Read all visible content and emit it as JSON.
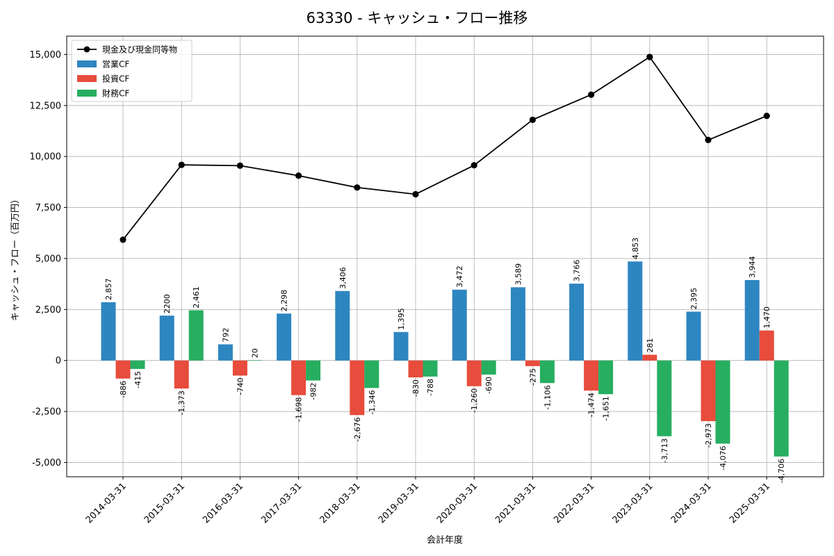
{
  "chart_data": {
    "type": "bar",
    "title": "63330 - キャッシュ・フロー推移",
    "xlabel": "会計年度",
    "ylabel": "キャッシュ・フロー（百万円）",
    "categories": [
      "2014-03-31",
      "2015-03-31",
      "2016-03-31",
      "2017-03-31",
      "2018-03-31",
      "2019-03-31",
      "2020-03-31",
      "2021-03-31",
      "2022-03-31",
      "2023-03-31",
      "2024-03-31",
      "2025-03-31"
    ],
    "ylim": [
      -5700,
      15900
    ],
    "yticks": [
      -5000,
      -2500,
      0,
      2500,
      5000,
      7500,
      10000,
      12500,
      15000
    ],
    "ytick_labels": [
      "-5,000",
      "-2,500",
      "0",
      "2,500",
      "5,000",
      "7,500",
      "10,000",
      "12,500",
      "15,000"
    ],
    "grid": true,
    "legend_position": "top-left",
    "series": [
      {
        "name": "営業CF",
        "kind": "bar",
        "color": "#2e86c1",
        "values": [
          2857,
          2200,
          792,
          2298,
          3406,
          1395,
          3472,
          3589,
          3766,
          4853,
          2395,
          3944
        ],
        "labels": [
          "2,857",
          "2200",
          "792",
          "2,298",
          "3,406",
          "1,395",
          "3,472",
          "3,589",
          "3,766",
          "4,853",
          "2,395",
          "3,944"
        ]
      },
      {
        "name": "投資CF",
        "kind": "bar",
        "color": "#e74c3c",
        "values": [
          -886,
          -1373,
          -740,
          -1698,
          -2676,
          -830,
          -1260,
          -275,
          -1474,
          281,
          -2973,
          1470
        ],
        "labels": [
          "-886",
          "-1,373",
          "-740",
          "-1,698",
          "-2,676",
          "-830",
          "-1,260",
          "-275",
          "-1,474",
          "281",
          "-2,973",
          "1,470"
        ]
      },
      {
        "name": "財務CF",
        "kind": "bar",
        "color": "#27ae60",
        "values": [
          -415,
          2461,
          20,
          -982,
          -1346,
          -788,
          -690,
          -1106,
          -1651,
          -3713,
          -4076,
          -4706
        ],
        "labels": [
          "-415",
          "2,461",
          "20",
          "-982",
          "-1,346",
          "-788",
          "-690",
          "-1,106",
          "-1,651",
          "-3,713",
          "-4,076",
          "-4,706"
        ]
      },
      {
        "name": "現金及び現金同等物",
        "kind": "line",
        "color": "#000000",
        "values": [
          5920,
          9590,
          9550,
          9060,
          8480,
          8150,
          9570,
          11800,
          13030,
          14880,
          10810,
          11990
        ]
      }
    ]
  }
}
